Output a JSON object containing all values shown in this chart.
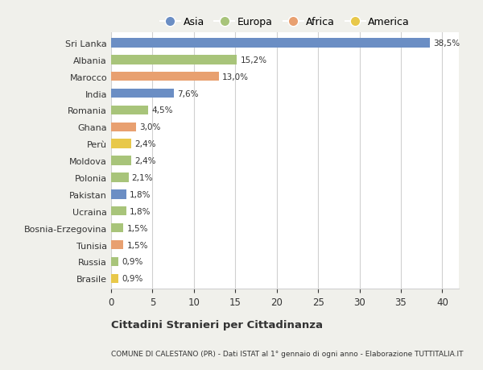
{
  "categories": [
    "Brasile",
    "Russia",
    "Tunisia",
    "Bosnia-Erzegovina",
    "Ucraina",
    "Pakistan",
    "Polonia",
    "Moldova",
    "Perù",
    "Ghana",
    "Romania",
    "India",
    "Marocco",
    "Albania",
    "Sri Lanka"
  ],
  "values": [
    0.9,
    0.9,
    1.5,
    1.5,
    1.8,
    1.8,
    2.1,
    2.4,
    2.4,
    3.0,
    4.5,
    7.6,
    13.0,
    15.2,
    38.5
  ],
  "labels": [
    "0,9%",
    "0,9%",
    "1,5%",
    "1,5%",
    "1,8%",
    "1,8%",
    "2,1%",
    "2,4%",
    "2,4%",
    "3,0%",
    "4,5%",
    "7,6%",
    "13,0%",
    "15,2%",
    "38,5%"
  ],
  "colors": [
    "#e8c84a",
    "#a8c47a",
    "#e8a070",
    "#a8c47a",
    "#a8c47a",
    "#6b8ec4",
    "#a8c47a",
    "#a8c47a",
    "#e8c84a",
    "#e8a070",
    "#a8c47a",
    "#6b8ec4",
    "#e8a070",
    "#a8c47a",
    "#6b8ec4"
  ],
  "legend": [
    {
      "label": "Asia",
      "color": "#6b8ec4"
    },
    {
      "label": "Europa",
      "color": "#a8c47a"
    },
    {
      "label": "Africa",
      "color": "#e8a070"
    },
    {
      "label": "America",
      "color": "#e8c84a"
    }
  ],
  "title": "Cittadini Stranieri per Cittadinanza",
  "subtitle": "COMUNE DI CALESTANO (PR) - Dati ISTAT al 1° gennaio di ogni anno - Elaborazione TUTTITALIA.IT",
  "xlim": [
    0,
    42
  ],
  "xticks": [
    0,
    5,
    10,
    15,
    20,
    25,
    30,
    35,
    40
  ],
  "background_color": "#f0f0eb",
  "bar_background": "#ffffff",
  "grid_color": "#d0d0d0",
  "text_color": "#333333"
}
